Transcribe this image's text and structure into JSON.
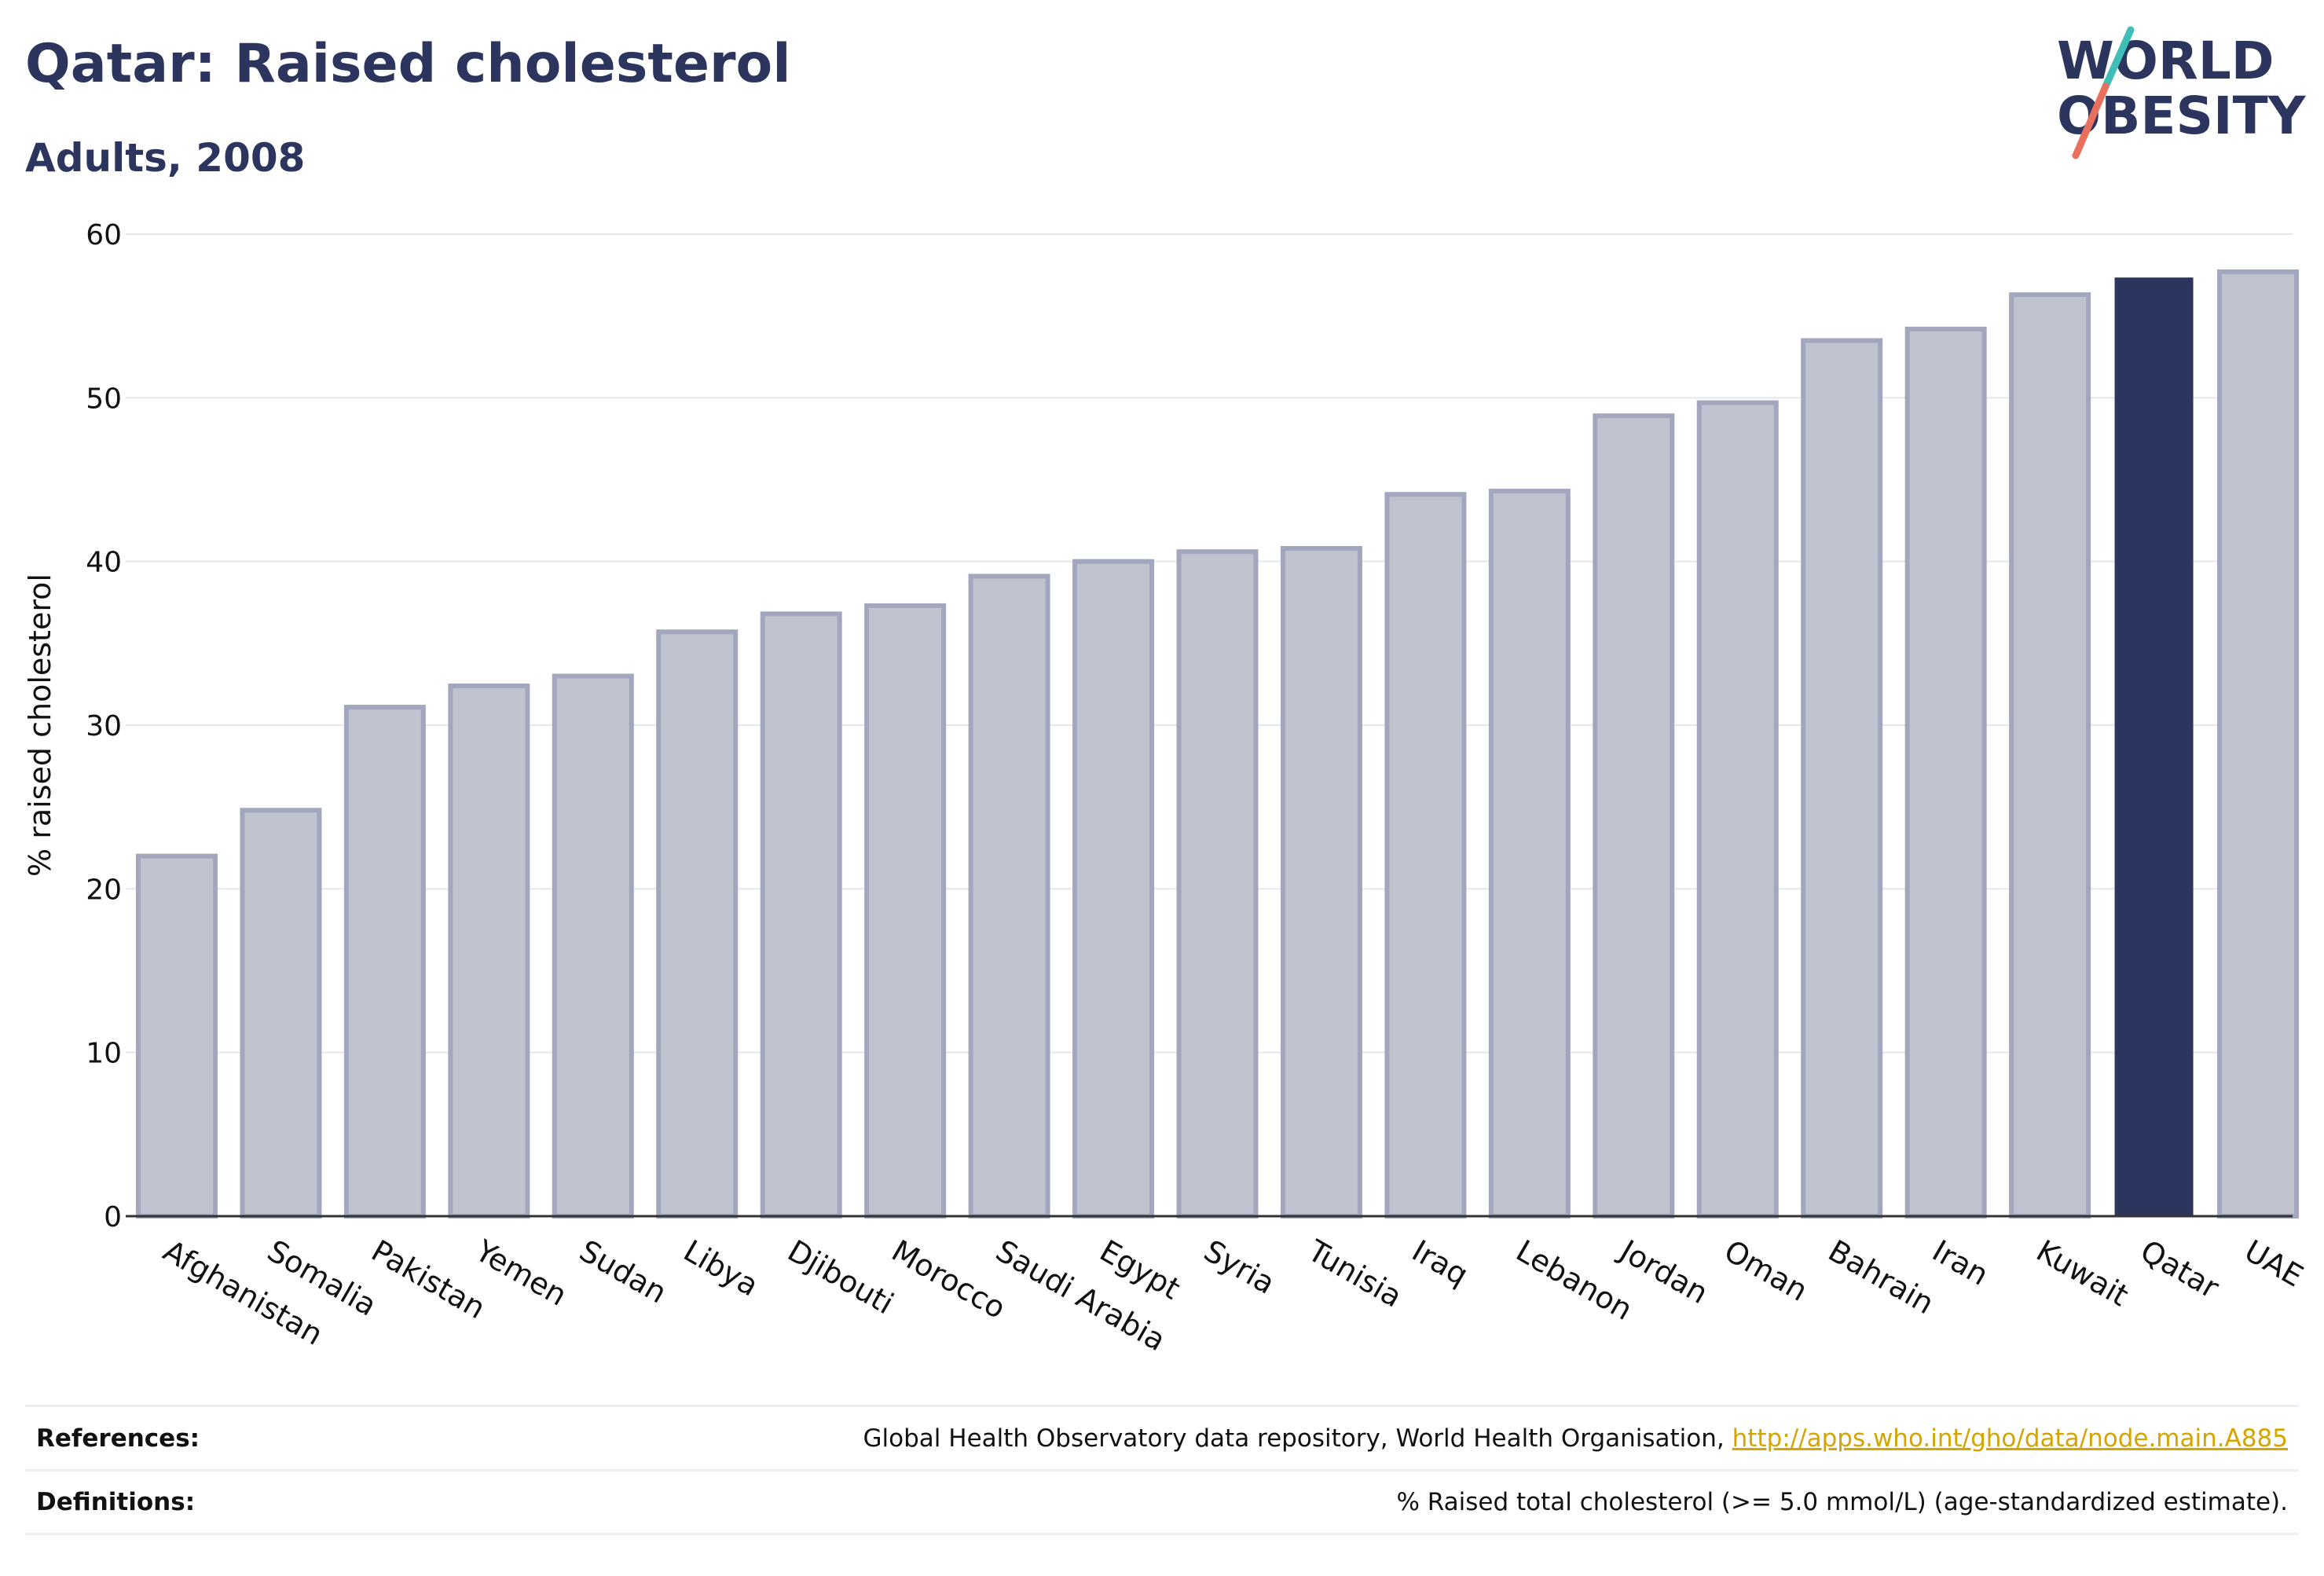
{
  "header": {
    "title": "Qatar: Raised cholesterol",
    "subtitle": "Adults, 2008"
  },
  "logo": {
    "line1": "WORLD",
    "line2": "OBESITY",
    "accent_colors": [
      "#3fbdb7",
      "#e8705c"
    ]
  },
  "footer": {
    "references_label": "References:",
    "references_text": "Global Health Observatory data repository, World Health Organisation, ",
    "references_link": "http://apps.who.int/gho/data/node.main.A885",
    "definitions_label": "Definitions:",
    "definitions_text": "% Raised total cholesterol (>= 5.0 mmol/L) (age-standardized estimate)."
  },
  "colors": {
    "highlight_bar": "#2b355e",
    "other_bar_fill": "#bfc2cf",
    "other_bar_stroke": "#a2a7bd",
    "text_dark": "#2b355e"
  },
  "chart_data": {
    "type": "bar",
    "title": "Qatar: Raised cholesterol",
    "subtitle": "Adults, 2008",
    "xlabel": "",
    "ylabel": "% raised cholesterol",
    "ylim": [
      0,
      60
    ],
    "yticks": [
      0,
      10,
      20,
      30,
      40,
      50,
      60
    ],
    "grid": true,
    "highlight": "Qatar",
    "categories": [
      "Afghanistan",
      "Somalia",
      "Pakistan",
      "Yemen",
      "Sudan",
      "Libya",
      "Djibouti",
      "Morocco",
      "Saudi Arabia",
      "Egypt",
      "Syria",
      "Tunisia",
      "Iraq",
      "Lebanon",
      "Jordan",
      "Oman",
      "Bahrain",
      "Iran",
      "Kuwait",
      "Qatar",
      "UAE"
    ],
    "values": [
      22.0,
      24.8,
      31.1,
      32.4,
      33.0,
      35.7,
      36.8,
      37.3,
      39.1,
      40.0,
      40.6,
      40.8,
      44.1,
      44.3,
      48.9,
      49.7,
      53.5,
      54.2,
      56.3,
      57.3,
      57.7
    ]
  }
}
